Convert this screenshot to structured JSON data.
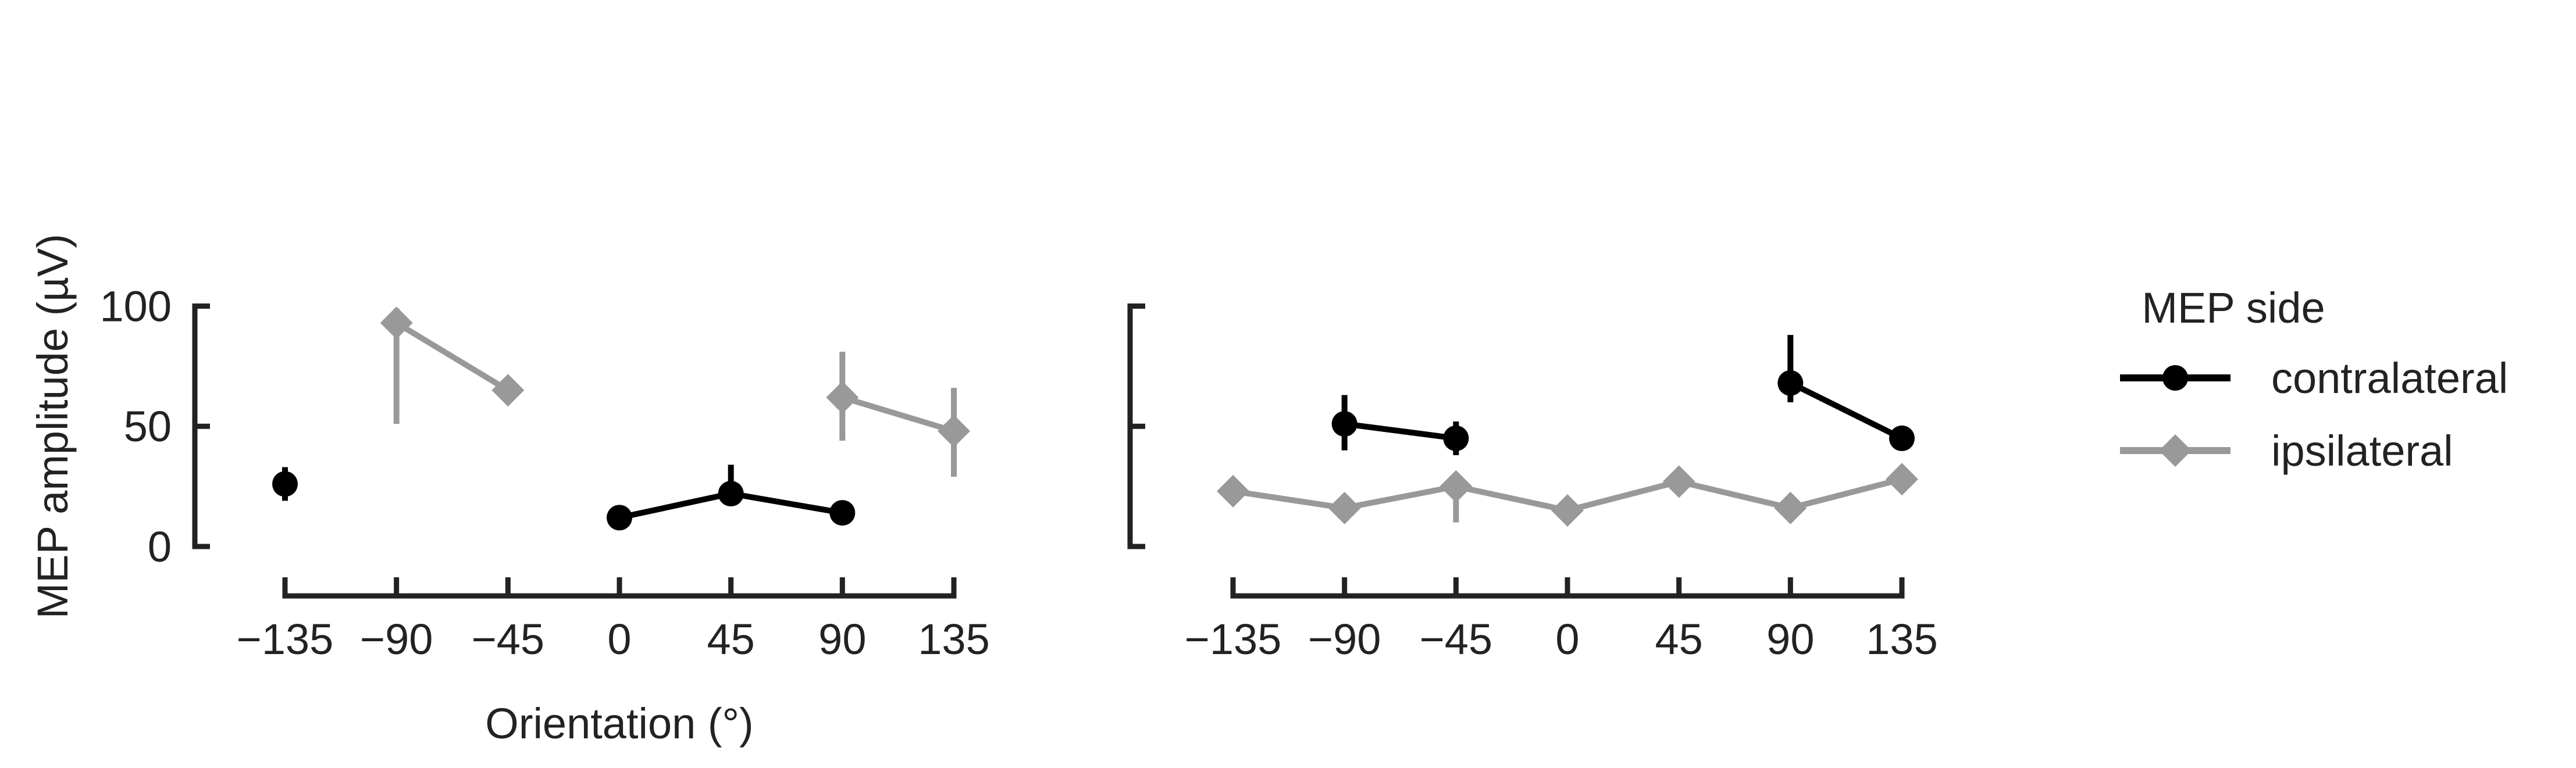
{
  "chart_data": [
    {
      "type": "line",
      "panel": "left",
      "xlabel": "Orientation (°)",
      "ylabel": "MEP amplitude (µV)",
      "xlim": [
        -135,
        135
      ],
      "ylim": [
        0,
        100
      ],
      "xticks": [
        "−135",
        "−90",
        "−45",
        "0",
        "45",
        "90",
        "135"
      ],
      "yticks": [
        "0",
        "50",
        "100"
      ],
      "grid": false,
      "series": [
        {
          "name": "contralateral",
          "color": "#000000",
          "marker": "circle",
          "segments": [
            [
              {
                "x": -135,
                "y": 26,
                "lo": 19,
                "hi": 33
              }
            ],
            [
              {
                "x": 0,
                "y": 12,
                "lo": 11,
                "hi": 13
              },
              {
                "x": 45,
                "y": 22,
                "lo": 18,
                "hi": 34
              },
              {
                "x": 90,
                "y": 14,
                "lo": 11,
                "hi": 17
              }
            ]
          ]
        },
        {
          "name": "ipsilateral",
          "color": "#999999",
          "marker": "diamond",
          "segments": [
            [
              {
                "x": -90,
                "y": 93,
                "lo": 51,
                "hi": 99
              },
              {
                "x": -45,
                "y": 65,
                "lo": 61,
                "hi": 70
              }
            ],
            [
              {
                "x": 90,
                "y": 62,
                "lo": 44,
                "hi": 81
              },
              {
                "x": 135,
                "y": 48,
                "lo": 29,
                "hi": 66
              }
            ]
          ]
        }
      ]
    },
    {
      "type": "line",
      "panel": "right",
      "xlim": [
        -135,
        135
      ],
      "ylim": [
        0,
        100
      ],
      "xticks": [
        "−135",
        "−90",
        "−45",
        "0",
        "45",
        "90",
        "135"
      ],
      "grid": false,
      "series": [
        {
          "name": "contralateral",
          "color": "#000000",
          "marker": "circle",
          "segments": [
            [
              {
                "x": -90,
                "y": 51,
                "lo": 40,
                "hi": 63
              },
              {
                "x": -45,
                "y": 45,
                "lo": 38,
                "hi": 52
              }
            ],
            [
              {
                "x": 90,
                "y": 68,
                "lo": 60,
                "hi": 88
              },
              {
                "x": 135,
                "y": 45,
                "lo": 40,
                "hi": 47
              }
            ]
          ]
        },
        {
          "name": "ipsilateral",
          "color": "#999999",
          "marker": "diamond",
          "segments": [
            [
              {
                "x": -135,
                "y": 23,
                "lo": 22,
                "hi": 24
              },
              {
                "x": -90,
                "y": 16,
                "lo": 15,
                "hi": 17
              },
              {
                "x": -45,
                "y": 25,
                "lo": 10,
                "hi": 29
              },
              {
                "x": 0,
                "y": 15,
                "lo": 14,
                "hi": 16
              },
              {
                "x": 45,
                "y": 27,
                "lo": 25,
                "hi": 28
              },
              {
                "x": 90,
                "y": 16,
                "lo": 15,
                "hi": 17
              },
              {
                "x": 135,
                "y": 28,
                "lo": 23,
                "hi": 33
              }
            ]
          ]
        }
      ]
    }
  ],
  "legend": {
    "title": "MEP side",
    "placement": "right",
    "items": [
      {
        "label": "contralateral",
        "color": "#000000",
        "marker": "circle"
      },
      {
        "label": "ipsilateral",
        "color": "#999999",
        "marker": "diamond"
      }
    ]
  }
}
